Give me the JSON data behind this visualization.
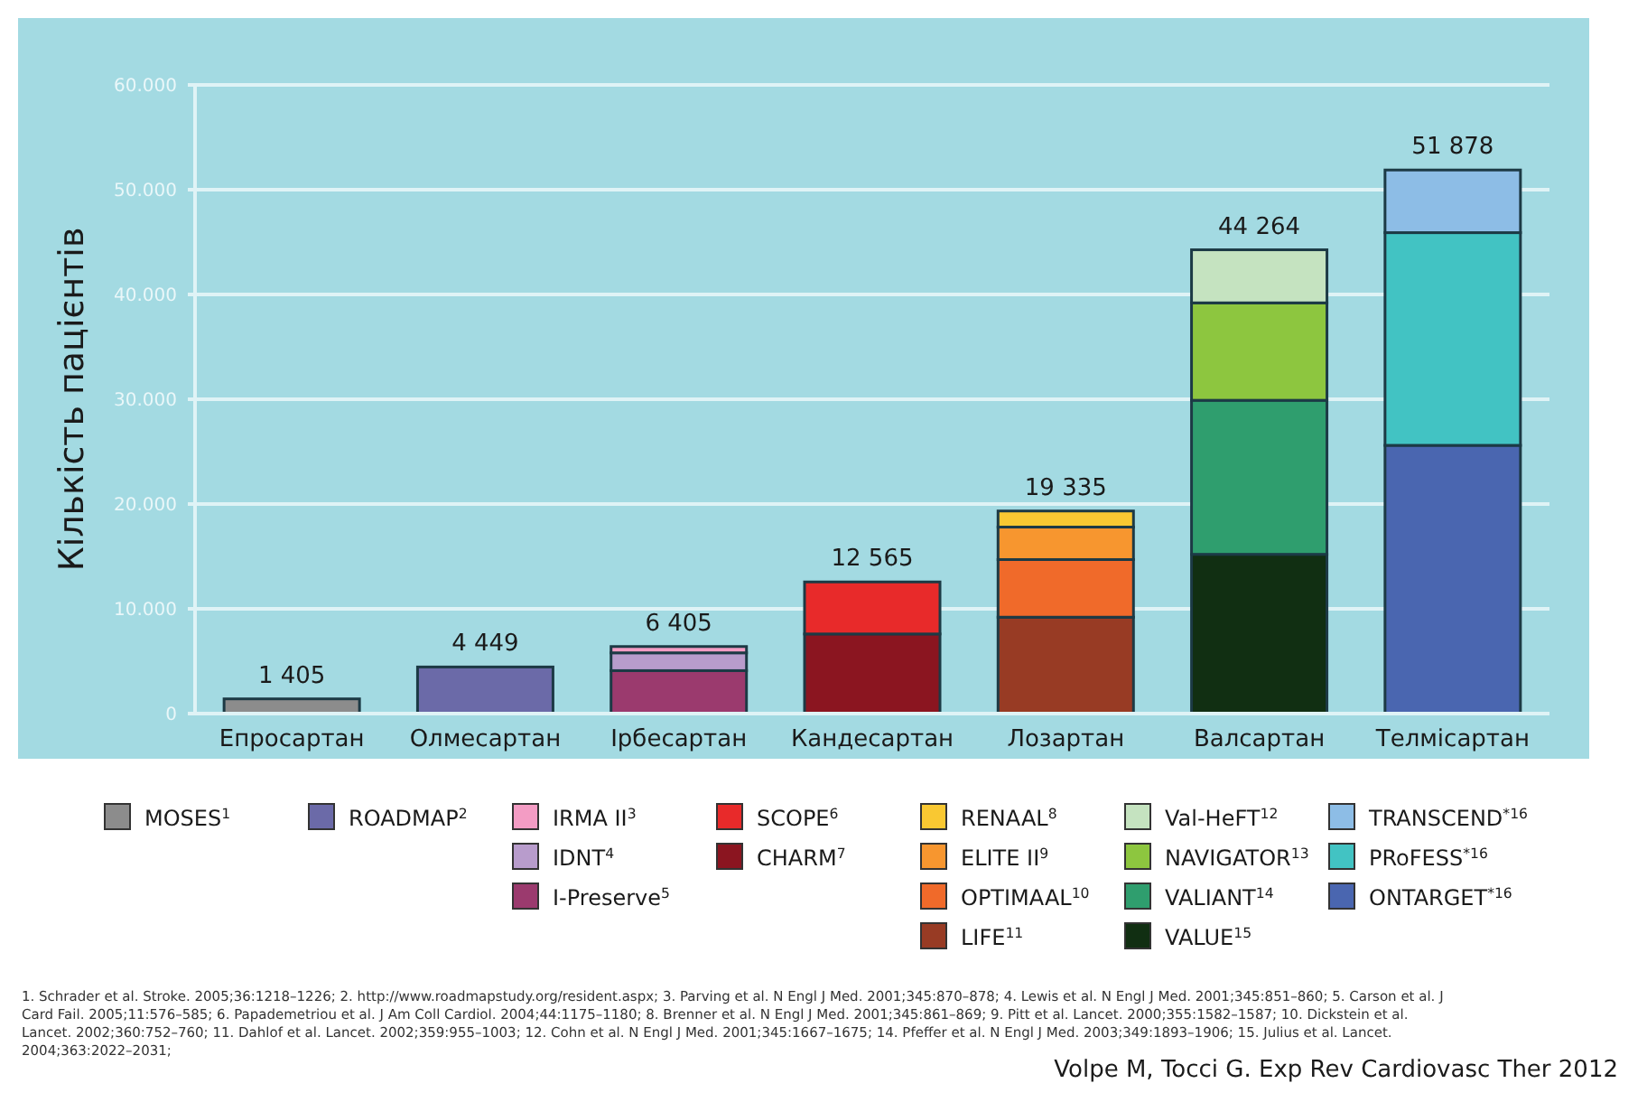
{
  "chart_data": {
    "type": "bar",
    "stacked": true,
    "ylabel": "Кількість пацієнтів",
    "categories": [
      "Епросартан",
      "Олмесартан",
      "Ірбесартан",
      "Кандесартан",
      "Лозартан",
      "Валсартан",
      "Телмісартан"
    ],
    "ylim": [
      0,
      60000
    ],
    "yticks": [
      {
        "value": 0,
        "label": "0"
      },
      {
        "value": 10000,
        "label": "10.000"
      },
      {
        "value": 20000,
        "label": "20.000"
      },
      {
        "value": 30000,
        "label": "30.000"
      },
      {
        "value": 40000,
        "label": "40.000"
      },
      {
        "value": 50000,
        "label": "50.000"
      },
      {
        "value": 60000,
        "label": "60.000"
      }
    ],
    "grid": "y",
    "legend": "bottom",
    "totals": [
      "1 405",
      "4 449",
      "6 405",
      "12 565",
      "19 335",
      "44 264",
      "51 878"
    ],
    "series": [
      {
        "name": "MOSES$^{1}$",
        "color": "#8c8c8c",
        "values": [
          1405,
          null,
          null,
          null,
          null,
          null,
          null
        ]
      },
      {
        "name": "ROADMAP$^{2}$",
        "color": "#6b6aa8",
        "values": [
          null,
          4449,
          null,
          null,
          null,
          null,
          null
        ]
      },
      {
        "name": "I-Preserve$^{5}$",
        "color": "#9b3a6e",
        "values": [
          null,
          null,
          4100,
          null,
          null,
          null,
          null
        ]
      },
      {
        "name": "IDNT$^{4}$",
        "color": "#b89ccc",
        "values": [
          null,
          null,
          1700,
          null,
          null,
          null,
          null
        ]
      },
      {
        "name": "IRMA II$^{3}$",
        "color": "#f39cc4",
        "values": [
          null,
          null,
          600,
          null,
          null,
          null,
          null
        ]
      },
      {
        "name": "CHARM$^{7}$",
        "color": "#8b1520",
        "values": [
          null,
          null,
          null,
          7600,
          null,
          null,
          null
        ]
      },
      {
        "name": "SCOPE$^{6}$",
        "color": "#e82a2a",
        "values": [
          null,
          null,
          null,
          4965,
          null,
          null,
          null
        ]
      },
      {
        "name": "LIFE$^{11}$",
        "color": "#983b24",
        "values": [
          null,
          null,
          null,
          null,
          9200,
          null,
          null
        ]
      },
      {
        "name": "OPTIMAAL$^{10}$",
        "color": "#f06a2a",
        "values": [
          null,
          null,
          null,
          null,
          5500,
          null,
          null
        ]
      },
      {
        "name": "ELITE II$^{9}$",
        "color": "#f7962f",
        "values": [
          null,
          null,
          null,
          null,
          3100,
          null,
          null
        ]
      },
      {
        "name": "RENAAL$^{8}$",
        "color": "#f9c832",
        "values": [
          null,
          null,
          null,
          null,
          1535,
          null,
          null
        ]
      },
      {
        "name": "VALUE$^{15}$",
        "color": "#112f12",
        "values": [
          null,
          null,
          null,
          null,
          null,
          15200,
          null
        ]
      },
      {
        "name": "VALIANT$^{14}$",
        "color": "#2f9e6e",
        "values": [
          null,
          null,
          null,
          null,
          null,
          14700,
          null
        ]
      },
      {
        "name": "NAVIGATOR$^{13}$",
        "color": "#8dc63f",
        "values": [
          null,
          null,
          null,
          null,
          null,
          9300,
          null
        ]
      },
      {
        "name": "Val-HeFT$^{12}$",
        "color": "#c5e3c0",
        "values": [
          null,
          null,
          null,
          null,
          null,
          5064,
          null
        ]
      },
      {
        "name": "ONTARGET$^{*16}$",
        "color": "#4a66b0",
        "values": [
          null,
          null,
          null,
          null,
          null,
          null,
          25600
        ]
      },
      {
        "name": "PRoFESS$^{*16}$",
        "color": "#42c3c3",
        "values": [
          null,
          null,
          null,
          null,
          null,
          null,
          20300
        ]
      },
      {
        "name": "TRANSCEND$^{*16}$",
        "color": "#8dbde6",
        "values": [
          null,
          null,
          null,
          null,
          null,
          null,
          5978
        ]
      }
    ],
    "annotations": [
      "1. Schrader et al. Stroke. 2005;36:1218–1226; 2. http://www.roadmapstudy.org/resident.aspx; 3. Parving et al. N Engl J Med. 2001;345:870–878; 4. Lewis et al. N Engl J Med. 2001;345:851–860; 5. Carson et al. J Card Fail. 2005;11:576–585; 6. Papademetriou et al. J Am Coll Cardiol. 2004;44:1175–1180; 8. Brenner et al. N Engl J Med. 2001;345:861–869; 9. Pitt et al. Lancet. 2000;355:1582–1587; 10. Dickstein et al. Lancet. 2002;360:752–760; 11. Dahlof et al. Lancet. 2002;359:955–1003; 12. Cohn et al. N Engl J Med. 2001;345:1667–1675; 14. Pfeffer et al. N Engl J Med. 2003;349:1893–1906; 15. Julius et al. Lancet. 2004;363:2022–2031;",
      "Volpe M, Tocci G. Exp Rev Cardiovasc Ther 2012"
    ]
  }
}
